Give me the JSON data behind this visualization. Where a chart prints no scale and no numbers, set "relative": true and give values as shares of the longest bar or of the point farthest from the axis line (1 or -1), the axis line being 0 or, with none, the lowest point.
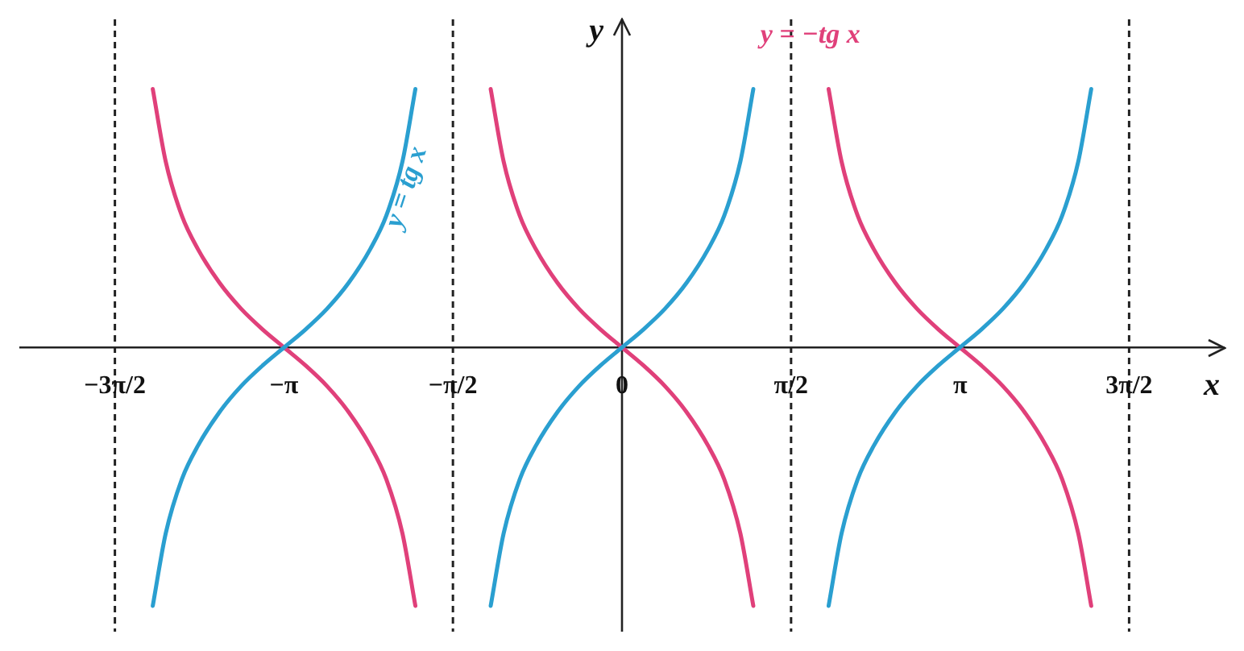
{
  "chart_data": {
    "type": "line",
    "relative": true,
    "xlabel": "x",
    "ylabel": "y",
    "xlim": [
      -5.6,
      5.6
    ],
    "xticks": [
      {
        "value": -4.712,
        "label": "−3π/2"
      },
      {
        "value": -3.142,
        "label": "−π"
      },
      {
        "value": -1.571,
        "label": "−π/2"
      },
      0,
      {
        "value": 1.571,
        "label": "π/2"
      },
      {
        "value": 3.142,
        "label": "π"
      },
      {
        "value": 4.712,
        "label": "3π/2"
      }
    ],
    "grid": false,
    "legend": false,
    "marker": "none",
    "line_style": "solid",
    "series": [
      {
        "name": "y = tg x",
        "color": "#2a9fd0",
        "x": [
          -4.36,
          -4.24,
          -4.09,
          -3.94,
          -3.74,
          -3.54,
          -3.34,
          -3.14,
          -2.94,
          -2.74,
          -2.54,
          -2.34,
          -2.19,
          -2.04,
          -1.92,
          -1.57,
          -1.22,
          -1.1,
          -0.95,
          -0.8,
          -0.6,
          -0.4,
          -0.2,
          0,
          0.2,
          0.4,
          0.6,
          0.8,
          0.95,
          1.1,
          1.22,
          1.57,
          1.92,
          2.04,
          2.19,
          2.34,
          2.54,
          2.74,
          2.94,
          3.14,
          3.34,
          3.54,
          3.74,
          3.94,
          4.09,
          4.24,
          4.36
        ],
        "values": [
          -1,
          -0.72,
          -0.51,
          -0.38,
          -0.25,
          -0.15,
          -0.07,
          0,
          0.07,
          0.15,
          0.25,
          0.38,
          0.51,
          0.72,
          1,
          null,
          -1,
          -0.72,
          -0.51,
          -0.38,
          -0.25,
          -0.15,
          -0.07,
          0,
          0.07,
          0.15,
          0.25,
          0.38,
          0.51,
          0.72,
          1,
          null,
          -1,
          -0.72,
          -0.51,
          -0.38,
          -0.25,
          -0.15,
          -0.07,
          0,
          0.07,
          0.15,
          0.25,
          0.38,
          0.51,
          0.72,
          1
        ]
      },
      {
        "name": "y = −tg x",
        "color": "#e0407a",
        "x": [
          -4.36,
          -4.24,
          -4.09,
          -3.94,
          -3.74,
          -3.54,
          -3.34,
          -3.14,
          -2.94,
          -2.74,
          -2.54,
          -2.34,
          -2.19,
          -2.04,
          -1.92,
          -1.57,
          -1.22,
          -1.1,
          -0.95,
          -0.8,
          -0.6,
          -0.4,
          -0.2,
          0,
          0.2,
          0.4,
          0.6,
          0.8,
          0.95,
          1.1,
          1.22,
          1.57,
          1.92,
          2.04,
          2.19,
          2.34,
          2.54,
          2.74,
          2.94,
          3.14,
          3.34,
          3.54,
          3.74,
          3.94,
          4.09,
          4.24,
          4.36
        ],
        "values": [
          1,
          0.72,
          0.51,
          0.38,
          0.25,
          0.15,
          0.07,
          0,
          -0.07,
          -0.15,
          -0.25,
          -0.38,
          -0.51,
          -0.72,
          -1,
          null,
          1,
          0.72,
          0.51,
          0.38,
          0.25,
          0.15,
          0.07,
          0,
          -0.07,
          -0.15,
          -0.25,
          -0.38,
          -0.51,
          -0.72,
          -1,
          null,
          1,
          0.72,
          0.51,
          0.38,
          0.25,
          0.15,
          0.07,
          0,
          -0.07,
          -0.15,
          -0.25,
          -0.38,
          -0.51,
          -0.72,
          -1
        ]
      }
    ],
    "ref_lines": [
      {
        "axis": "x",
        "value": -4.712,
        "color": "#222222",
        "line_style": "dashed"
      },
      {
        "axis": "x",
        "value": -1.571,
        "color": "#222222",
        "line_style": "dashed"
      },
      {
        "axis": "x",
        "value": 1.571,
        "color": "#222222",
        "line_style": "dashed"
      },
      {
        "axis": "x",
        "value": 4.712,
        "color": "#222222",
        "line_style": "dashed"
      }
    ]
  }
}
